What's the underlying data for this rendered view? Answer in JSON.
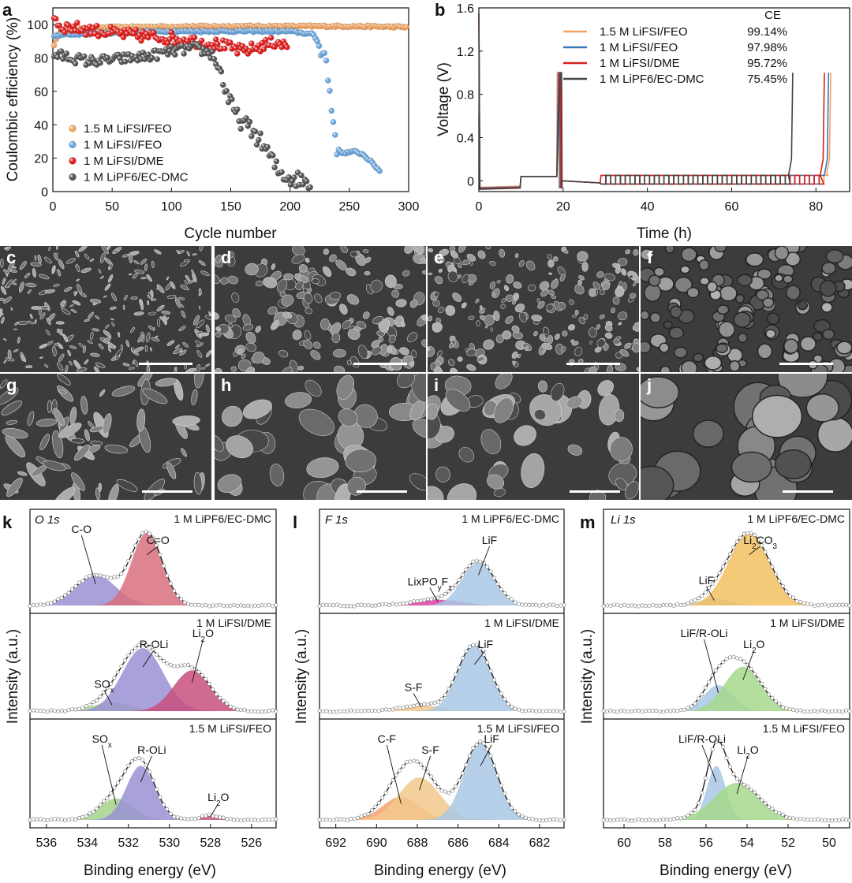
{
  "chart_data": [
    {
      "panel": "a",
      "type": "scatter",
      "xlabel": "Cycle number",
      "ylabel": "Coulombic efficiency (%)",
      "xlim": [
        0,
        300
      ],
      "ylim": [
        0,
        110
      ],
      "xticks": [
        "0",
        "50",
        "100",
        "150",
        "200",
        "250",
        "300"
      ],
      "yticks": [
        "0",
        "20",
        "40",
        "60",
        "80",
        "100"
      ],
      "legend_position": "bottom-left",
      "series": [
        {
          "name": "1.5 M LiFSI/FEO",
          "color": "#F4A460",
          "points": [
            [
              1,
              88
            ],
            [
              5,
              95
            ],
            [
              10,
              97
            ],
            [
              30,
              98
            ],
            [
              60,
              98.5
            ],
            [
              100,
              98.8
            ],
            [
              150,
              99
            ],
            [
              200,
              99
            ],
            [
              250,
              99
            ],
            [
              300,
              98.5
            ]
          ]
        },
        {
          "name": "1 M LiFSI/FEO",
          "color": "#6CA6DC",
          "points": [
            [
              1,
              93
            ],
            [
              10,
              94
            ],
            [
              50,
              95
            ],
            [
              100,
              96
            ],
            [
              150,
              96
            ],
            [
              200,
              96
            ],
            [
              220,
              94
            ],
            [
              230,
              80
            ],
            [
              235,
              50
            ],
            [
              240,
              25
            ],
            [
              245,
              23
            ],
            [
              255,
              24
            ],
            [
              262,
              22
            ],
            [
              268,
              18
            ],
            [
              272,
              15
            ],
            [
              276,
              12
            ]
          ]
        },
        {
          "name": "1 M LiFSI/DME",
          "color": "#E02020",
          "points": [
            [
              1,
              106
            ],
            [
              5,
              99
            ],
            [
              20,
              98
            ],
            [
              40,
              96
            ],
            [
              60,
              94
            ],
            [
              80,
              93
            ],
            [
              100,
              92
            ],
            [
              120,
              90
            ],
            [
              140,
              88
            ],
            [
              160,
              84
            ],
            [
              180,
              88
            ],
            [
              190,
              90
            ],
            [
              198,
              86
            ]
          ]
        },
        {
          "name": "1 M LiPF6/EC-DMC",
          "color": "#555555",
          "points": [
            [
              1,
              82
            ],
            [
              10,
              81
            ],
            [
              30,
              78
            ],
            [
              50,
              79
            ],
            [
              80,
              81
            ],
            [
              100,
              84
            ],
            [
              120,
              86
            ],
            [
              135,
              82
            ],
            [
              142,
              70
            ],
            [
              148,
              55
            ],
            [
              155,
              45
            ],
            [
              162,
              40
            ],
            [
              170,
              35
            ],
            [
              180,
              25
            ],
            [
              190,
              12
            ],
            [
              200,
              8
            ],
            [
              210,
              7
            ],
            [
              218,
              5
            ]
          ]
        }
      ]
    },
    {
      "panel": "b",
      "type": "line",
      "xlabel": "Time (h)",
      "ylabel": "Voltage (V)",
      "xlim": [
        0,
        88
      ],
      "ylim": [
        -0.1,
        1.6
      ],
      "xticks": [
        "0",
        "20",
        "40",
        "60",
        "80"
      ],
      "yticks": [
        "0",
        "0.4",
        "0.8",
        "1.2",
        "1.6"
      ],
      "legend_title": "CE",
      "legend_position": "top-right",
      "series": [
        {
          "name": "1.5 M LiFSI/FEO",
          "ce": "99.14%",
          "color": "#F4A460",
          "end_hours": 83.5
        },
        {
          "name": "1 M LiFSI/FEO",
          "ce": "97.98%",
          "color": "#3878B8",
          "end_hours": 83.0
        },
        {
          "name": "1 M LiFSI/DME",
          "ce": "95.72%",
          "color": "#D42020",
          "end_hours": 82.0
        },
        {
          "name": "1 M LiPF6/EC-DMC",
          "ce": "75.45%",
          "color": "#444444",
          "end_hours": 74.5
        }
      ]
    },
    {
      "panel": "k",
      "type": "line",
      "title": "O 1s",
      "xlabel": "Binding energy (eV)",
      "ylabel": "Intensity (a.u.)",
      "xlim": [
        536.8,
        524.8
      ],
      "xticks": [
        "536",
        "534",
        "532",
        "530",
        "528",
        "526"
      ],
      "subpanels": [
        {
          "label": "1 M LiPF6/EC-DMC",
          "peaks": [
            {
              "name": "C-O",
              "center": 533.6,
              "height": 0.42,
              "width": 1.0,
              "color": "#9A90D4"
            },
            {
              "name": "C=O",
              "center": 531.1,
              "height": 1.0,
              "width": 0.75,
              "color": "#D8707E"
            }
          ]
        },
        {
          "label": "1 M LiFSI/DME",
          "peaks": [
            {
              "name": "SOx",
              "center": 532.8,
              "height": 0.12,
              "width": 0.9,
              "color": "#A6D28C"
            },
            {
              "name": "R-OLi",
              "center": 531.3,
              "height": 0.85,
              "width": 1.0,
              "color": "#9A90D4"
            },
            {
              "name": "Li2O",
              "center": 528.9,
              "height": 0.55,
              "width": 0.9,
              "color": "#C8507E"
            }
          ]
        },
        {
          "label": "1.5 M LiFSI/FEO",
          "peaks": [
            {
              "name": "SOx",
              "center": 532.6,
              "height": 0.28,
              "width": 0.8,
              "color": "#A6D28C"
            },
            {
              "name": "R-OLi",
              "center": 531.4,
              "height": 0.7,
              "width": 0.7,
              "color": "#9A90D4"
            },
            {
              "name": "Li2O",
              "center": 528.0,
              "height": 0.06,
              "width": 0.5,
              "color": "#C8507E"
            }
          ]
        }
      ]
    },
    {
      "panel": "l",
      "type": "line",
      "title": "F 1s",
      "xlabel": "Binding energy (eV)",
      "ylabel": "Intensity (a.u.)",
      "xlim": [
        692.8,
        680.8
      ],
      "xticks": [
        "692",
        "690",
        "688",
        "686",
        "684",
        "682"
      ],
      "subpanels": [
        {
          "label": "1 M LiPF6/EC-DMC",
          "peaks": [
            {
              "name": "LixPOyFz",
              "center": 687.0,
              "height": 0.08,
              "width": 1.2,
              "color": "#E040A0"
            },
            {
              "name": "LiF",
              "center": 685.0,
              "height": 0.6,
              "width": 0.8,
              "color": "#A8C8E4"
            }
          ]
        },
        {
          "label": "1 M LiFSI/DME",
          "peaks": [
            {
              "name": "S-F",
              "center": 687.8,
              "height": 0.08,
              "width": 1.0,
              "color": "#F2C88C"
            },
            {
              "name": "LiF",
              "center": 685.2,
              "height": 0.9,
              "width": 0.8,
              "color": "#A8C8E4"
            }
          ]
        },
        {
          "label": "1.5 M LiFSI/FEO",
          "peaks": [
            {
              "name": "C-F",
              "center": 688.8,
              "height": 0.3,
              "width": 0.9,
              "color": "#F4A070"
            },
            {
              "name": "S-F",
              "center": 687.9,
              "height": 0.55,
              "width": 1.0,
              "color": "#F2C88C"
            },
            {
              "name": "LiF",
              "center": 684.9,
              "height": 1.0,
              "width": 0.8,
              "color": "#A8C8E4"
            }
          ]
        }
      ]
    },
    {
      "panel": "m",
      "type": "line",
      "title": "Li 1s",
      "xlabel": "Binding energy (eV)",
      "ylabel": "Intensity (a.u.)",
      "xlim": [
        61,
        49
      ],
      "xticks": [
        "60",
        "58",
        "56",
        "54",
        "52",
        "50"
      ],
      "subpanels": [
        {
          "label": "1 M LiPF6/EC-DMC",
          "peaks": [
            {
              "name": "LiF",
              "center": 55.6,
              "height": 0.1,
              "width": 0.7,
              "color": "#A8C8E4"
            },
            {
              "name": "Li2CO3",
              "center": 53.9,
              "height": 1.0,
              "width": 1.0,
              "color": "#F2C060"
            }
          ]
        },
        {
          "label": "1 M LiFSI/DME",
          "peaks": [
            {
              "name": "LiF/R-OLi",
              "center": 55.4,
              "height": 0.35,
              "width": 0.7,
              "color": "#A8C8E4"
            },
            {
              "name": "Li2O",
              "center": 54.2,
              "height": 0.6,
              "width": 0.9,
              "color": "#A6D88C"
            }
          ]
        },
        {
          "label": "1.5 M LiFSI/FEO",
          "peaks": [
            {
              "name": "LiF/R-OLi",
              "center": 55.5,
              "height": 0.7,
              "width": 0.45,
              "color": "#A8C8E4"
            },
            {
              "name": "Li2O",
              "center": 54.5,
              "height": 0.48,
              "width": 1.1,
              "color": "#A6D88C"
            }
          ]
        }
      ]
    }
  ],
  "sem_panels": [
    {
      "label": "c",
      "texture": "flaky"
    },
    {
      "label": "d",
      "texture": "lumpy"
    },
    {
      "label": "e",
      "texture": "granular"
    },
    {
      "label": "f",
      "texture": "grains"
    },
    {
      "label": "g",
      "texture": "flaky"
    },
    {
      "label": "h",
      "texture": "lumpy"
    },
    {
      "label": "i",
      "texture": "granular"
    },
    {
      "label": "j",
      "texture": "grains"
    }
  ],
  "panel_labels": [
    "a",
    "b",
    "k",
    "l",
    "m"
  ],
  "colors": {
    "axis": "#111111",
    "fit_line": "#222222",
    "data_marker": "#555555"
  }
}
